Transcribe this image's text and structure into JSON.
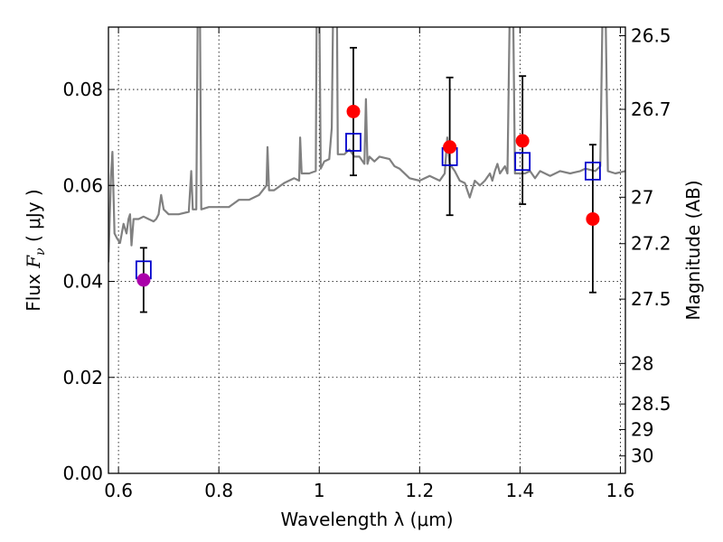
{
  "chart_data": {
    "type": "scatter",
    "xlabel": "Wavelength  λ (μm)",
    "ylabel_prefix": "Flux  ",
    "ylabel_symbol": "F",
    "ylabel_subscript": "ν",
    "ylabel_units": "  ( μJy )",
    "y2label": "Magnitude (AB)",
    "xlim": [
      0.58,
      1.61
    ],
    "ylim": [
      0.0,
      0.093
    ],
    "xticks": [
      0.6,
      0.8,
      1.0,
      1.2,
      1.4,
      1.6
    ],
    "xtick_labels": [
      "0.6",
      "0.8",
      "1",
      "1.2",
      "1.4",
      "1.6"
    ],
    "yticks": [
      0.0,
      0.02,
      0.04,
      0.06,
      0.08
    ],
    "ytick_labels": [
      "0.00",
      "0.02",
      "0.04",
      "0.06",
      "0.08"
    ],
    "y2ticks": [
      26.5,
      26.7,
      27.0,
      27.2,
      27.5,
      28.0,
      28.5,
      29.0,
      30.0
    ],
    "y2tick_labels": [
      "26.5",
      "26.7",
      "27",
      "27.2",
      "27.5",
      "28",
      "28.5",
      "29",
      "30"
    ],
    "grid": true,
    "colors": {
      "spectrum": "#808080",
      "model_box": "#0000cc",
      "observed": "#ff0000",
      "observed_first": "#aa00aa",
      "errorbar": "#000000"
    },
    "spectrum": [
      [
        0.58,
        0.044
      ],
      [
        0.585,
        0.062
      ],
      [
        0.588,
        0.067
      ],
      [
        0.592,
        0.05
      ],
      [
        0.597,
        0.049
      ],
      [
        0.603,
        0.048
      ],
      [
        0.61,
        0.052
      ],
      [
        0.616,
        0.05
      ],
      [
        0.62,
        0.053
      ],
      [
        0.623,
        0.054
      ],
      [
        0.626,
        0.0475
      ],
      [
        0.63,
        0.053
      ],
      [
        0.64,
        0.053
      ],
      [
        0.65,
        0.0535
      ],
      [
        0.66,
        0.053
      ],
      [
        0.67,
        0.0525
      ],
      [
        0.675,
        0.053
      ],
      [
        0.68,
        0.054
      ],
      [
        0.685,
        0.058
      ],
      [
        0.69,
        0.055
      ],
      [
        0.7,
        0.054
      ],
      [
        0.72,
        0.054
      ],
      [
        0.74,
        0.0545
      ],
      [
        0.745,
        0.063
      ],
      [
        0.748,
        0.055
      ],
      [
        0.755,
        0.055
      ],
      [
        0.758,
        0.1
      ],
      [
        0.762,
        0.1
      ],
      [
        0.765,
        0.055
      ],
      [
        0.78,
        0.0555
      ],
      [
        0.8,
        0.0555
      ],
      [
        0.82,
        0.0555
      ],
      [
        0.84,
        0.057
      ],
      [
        0.86,
        0.057
      ],
      [
        0.88,
        0.058
      ],
      [
        0.895,
        0.06
      ],
      [
        0.897,
        0.068
      ],
      [
        0.9,
        0.059
      ],
      [
        0.91,
        0.059
      ],
      [
        0.93,
        0.0605
      ],
      [
        0.95,
        0.0615
      ],
      [
        0.96,
        0.061
      ],
      [
        0.962,
        0.07
      ],
      [
        0.965,
        0.0625
      ],
      [
        0.98,
        0.0625
      ],
      [
        0.993,
        0.063
      ],
      [
        0.995,
        0.1
      ],
      [
        1.0,
        0.1
      ],
      [
        1.003,
        0.0635
      ],
      [
        1.01,
        0.065
      ],
      [
        1.02,
        0.0655
      ],
      [
        1.025,
        0.072
      ],
      [
        1.028,
        0.1
      ],
      [
        1.035,
        0.1
      ],
      [
        1.037,
        0.0665
      ],
      [
        1.05,
        0.0665
      ],
      [
        1.06,
        0.0675
      ],
      [
        1.07,
        0.066
      ],
      [
        1.08,
        0.066
      ],
      [
        1.09,
        0.0645
      ],
      [
        1.093,
        0.078
      ],
      [
        1.096,
        0.0645
      ],
      [
        1.1,
        0.066
      ],
      [
        1.11,
        0.065
      ],
      [
        1.12,
        0.066
      ],
      [
        1.14,
        0.0655
      ],
      [
        1.15,
        0.064
      ],
      [
        1.16,
        0.0635
      ],
      [
        1.18,
        0.0615
      ],
      [
        1.2,
        0.061
      ],
      [
        1.22,
        0.062
      ],
      [
        1.24,
        0.061
      ],
      [
        1.25,
        0.0625
      ],
      [
        1.255,
        0.07
      ],
      [
        1.26,
        0.0645
      ],
      [
        1.27,
        0.063
      ],
      [
        1.28,
        0.061
      ],
      [
        1.29,
        0.0605
      ],
      [
        1.3,
        0.0575
      ],
      [
        1.31,
        0.061
      ],
      [
        1.32,
        0.06
      ],
      [
        1.33,
        0.061
      ],
      [
        1.34,
        0.0625
      ],
      [
        1.345,
        0.061
      ],
      [
        1.35,
        0.063
      ],
      [
        1.355,
        0.0645
      ],
      [
        1.36,
        0.0625
      ],
      [
        1.37,
        0.064
      ],
      [
        1.375,
        0.0625
      ],
      [
        1.38,
        0.1
      ],
      [
        1.386,
        0.1
      ],
      [
        1.39,
        0.0625
      ],
      [
        1.41,
        0.0625
      ],
      [
        1.42,
        0.063
      ],
      [
        1.43,
        0.0615
      ],
      [
        1.44,
        0.063
      ],
      [
        1.46,
        0.062
      ],
      [
        1.48,
        0.063
      ],
      [
        1.5,
        0.0625
      ],
      [
        1.52,
        0.063
      ],
      [
        1.53,
        0.0635
      ],
      [
        1.55,
        0.063
      ],
      [
        1.56,
        0.064
      ],
      [
        1.565,
        0.1
      ],
      [
        1.57,
        0.1
      ],
      [
        1.575,
        0.063
      ],
      [
        1.59,
        0.0625
      ],
      [
        1.61,
        0.063
      ]
    ],
    "model_points": [
      {
        "x": 0.65,
        "y": 0.0424
      },
      {
        "x": 1.068,
        "y": 0.069
      },
      {
        "x": 1.26,
        "y": 0.066
      },
      {
        "x": 1.405,
        "y": 0.065
      },
      {
        "x": 1.545,
        "y": 0.063
      }
    ],
    "observed_points": [
      {
        "x": 0.65,
        "y": 0.0403,
        "err_low": 0.0067,
        "err_high": 0.0067
      },
      {
        "x": 1.068,
        "y": 0.0754,
        "err_low": 0.0133,
        "err_high": 0.0133
      },
      {
        "x": 1.26,
        "y": 0.068,
        "err_low": 0.0142,
        "err_high": 0.0145
      },
      {
        "x": 1.405,
        "y": 0.0693,
        "err_low": 0.0132,
        "err_high": 0.0135
      },
      {
        "x": 1.545,
        "y": 0.053,
        "err_low": 0.0153,
        "err_high": 0.0155
      }
    ]
  }
}
